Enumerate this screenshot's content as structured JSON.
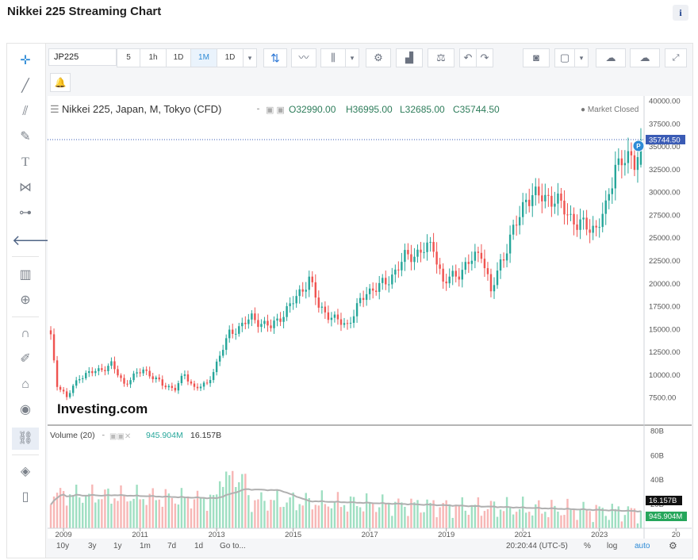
{
  "page": {
    "title": "Nikkei 225 Streaming Chart",
    "info": "i"
  },
  "toolbar": {
    "symbol": "JP225",
    "intervals": [
      "5",
      "1h",
      "1D",
      "1M",
      "1D"
    ],
    "active_interval": "1M",
    "dropdown": "▾"
  },
  "left_tools": [
    "crosshair-icon",
    "trendline-icon",
    "fib-icon",
    "brush-icon",
    "text-icon",
    "pattern-icon",
    "measure-icon",
    "back-arrow-icon",
    "indicators-icon",
    "zoom-in-icon",
    "magnet-icon",
    "lock-drawing-icon",
    "unlock-icon",
    "eye-icon",
    "link-icon",
    "layers-icon",
    "trash-icon"
  ],
  "legend": {
    "name": "Nikkei 225, Japan, M, Tokyo (CFD)",
    "o": "O32990.00",
    "h": "H36995.00",
    "l": "L32685.00",
    "c": "C35744.50",
    "status": "● Market Closed"
  },
  "price_axis": {
    "ticks": [
      "40000.00",
      "37500.00",
      "35000.00",
      "32500.00",
      "30000.00",
      "27500.00",
      "25000.00",
      "22500.00",
      "20000.00",
      "17500.00",
      "15000.00",
      "12500.00",
      "10000.00",
      "7500.00"
    ],
    "last_price": "35744.50"
  },
  "volume": {
    "label": "Volume (20)",
    "v1": "945.904M",
    "v2": "16.157B",
    "ticks": [
      "80B",
      "60B",
      "40B",
      "20B"
    ],
    "badge_ma": "16.157B",
    "badge_vol": "945.904M"
  },
  "time_axis": [
    "2009",
    "2011",
    "2013",
    "2015",
    "2017",
    "2019",
    "2021",
    "2023",
    "20"
  ],
  "bottom_bar": {
    "ranges": [
      "10y",
      "3y",
      "1y",
      "1m",
      "7d",
      "1d",
      "Go to..."
    ],
    "clock": "20:20:44 (UTC-5)",
    "percent": "%",
    "log": "log",
    "auto": "auto"
  },
  "watermark": "Investing.com",
  "marker_label": "P",
  "colors": {
    "up": "#26a69a",
    "down": "#ef5350",
    "up_volume": "#9fdfc2",
    "down_volume": "#f7b7b6",
    "accent": "#2e8bd6",
    "ma": "#b0b0b0"
  },
  "chart_data": {
    "type": "candlestick",
    "interval": "1M",
    "x_range": [
      "2008-08",
      "2024-03"
    ],
    "ylim": [
      5000,
      40000
    ],
    "anchors": [
      [
        "2008-09",
        14000
      ],
      [
        "2008-11",
        9000
      ],
      [
        "2009-02",
        7500
      ],
      [
        "2009-06",
        9800
      ],
      [
        "2009-12",
        10500
      ],
      [
        "2010-04",
        11100
      ],
      [
        "2010-08",
        9000
      ],
      [
        "2011-02",
        10600
      ],
      [
        "2011-08",
        8900
      ],
      [
        "2011-12",
        8500
      ],
      [
        "2012-03",
        10000
      ],
      [
        "2012-06",
        8600
      ],
      [
        "2012-10",
        8900
      ],
      [
        "2013-05",
        14500
      ],
      [
        "2013-12",
        16200
      ],
      [
        "2014-06",
        15200
      ],
      [
        "2014-12",
        17500
      ],
      [
        "2015-06",
        20500
      ],
      [
        "2015-09",
        17500
      ],
      [
        "2016-02",
        16000
      ],
      [
        "2016-06",
        15500
      ],
      [
        "2016-12",
        19100
      ],
      [
        "2017-06",
        20000
      ],
      [
        "2017-12",
        22800
      ],
      [
        "2018-09",
        24100
      ],
      [
        "2018-12",
        20000
      ],
      [
        "2019-06",
        21500
      ],
      [
        "2019-12",
        23600
      ],
      [
        "2020-03",
        18900
      ],
      [
        "2020-06",
        22300
      ],
      [
        "2020-12",
        27400
      ],
      [
        "2021-02",
        29500
      ],
      [
        "2021-09",
        29500
      ],
      [
        "2021-12",
        28800
      ],
      [
        "2022-03",
        27800
      ],
      [
        "2022-06",
        26400
      ],
      [
        "2022-12",
        26100
      ],
      [
        "2023-03",
        28000
      ],
      [
        "2023-06",
        33200
      ],
      [
        "2023-12",
        33500
      ],
      [
        "2024-02",
        35744.5
      ]
    ],
    "last": {
      "open": 32990.0,
      "high": 36995.0,
      "low": 32685.0,
      "close": 35744.5
    },
    "volume_ylim": [
      0,
      80
    ],
    "volume_unit": "B"
  }
}
